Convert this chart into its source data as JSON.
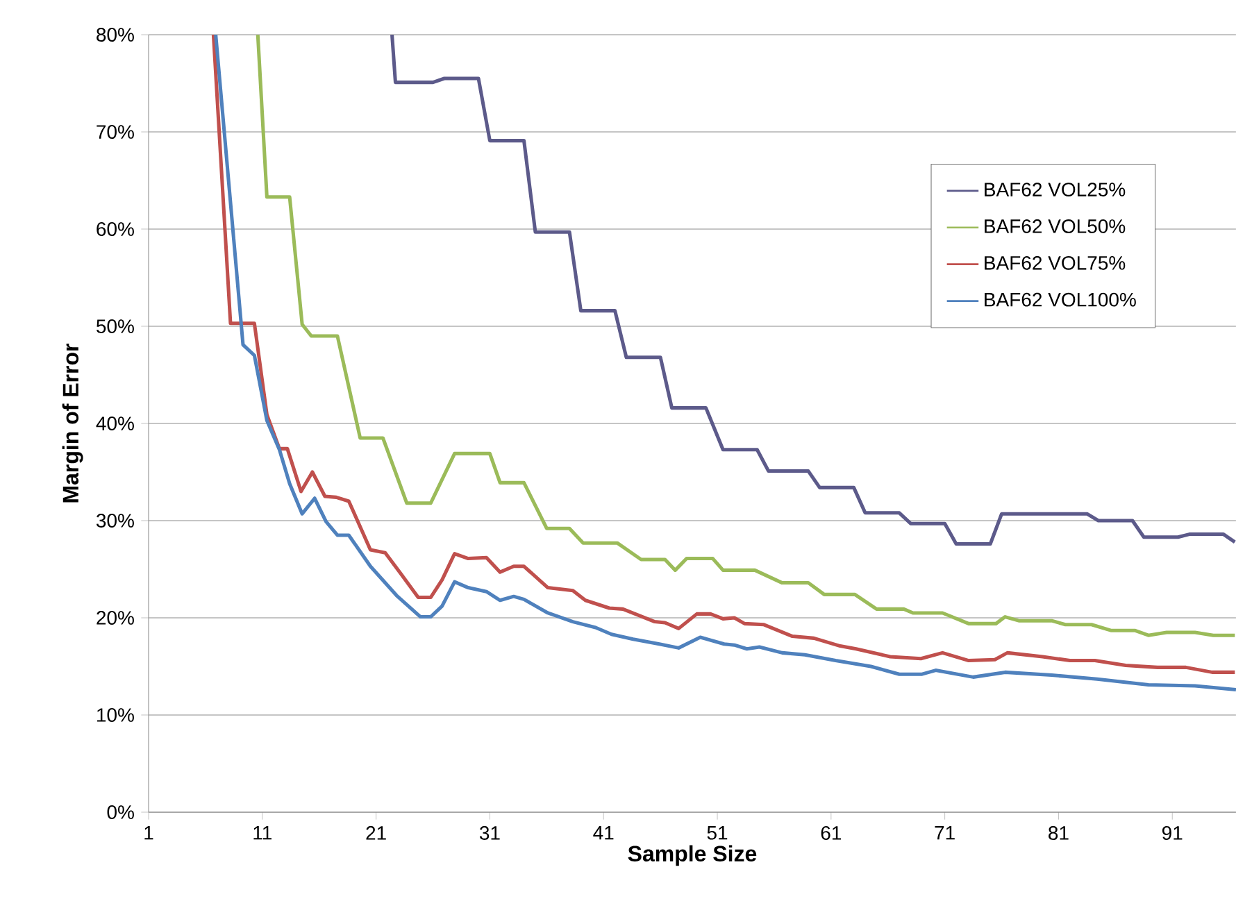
{
  "chart_data": {
    "type": "line",
    "xlabel": "Sample Size",
    "ylabel": "Margin of Error",
    "xlim": [
      1,
      96.6
    ],
    "xticks": [
      1,
      11,
      21,
      31,
      41,
      51,
      61,
      71,
      81,
      91
    ],
    "ylim": [
      0,
      80
    ],
    "yticks": [
      {
        "value": 0,
        "label": "0%"
      },
      {
        "value": 10,
        "label": "10%"
      },
      {
        "value": 20,
        "label": "20%"
      },
      {
        "value": 30,
        "label": "30%"
      },
      {
        "value": 40,
        "label": "40%"
      },
      {
        "value": 50,
        "label": "50%"
      },
      {
        "value": 60,
        "label": "60%"
      },
      {
        "value": 70,
        "label": "70%"
      },
      {
        "value": 80,
        "label": "80%"
      }
    ],
    "grid": "y",
    "legend": "top right",
    "series": [
      {
        "name": "BAF62 VOL25%",
        "color": "#5c5a8a",
        "x": [
          22.4,
          22.7,
          26,
          27,
          30,
          31,
          34,
          35,
          38,
          39,
          42,
          43,
          46,
          47,
          50,
          51.5,
          54.5,
          55.5,
          59,
          60,
          63,
          64,
          67,
          68,
          71,
          72,
          75,
          76,
          83.5,
          84.5,
          87.5,
          88.5,
          91.5,
          92.5,
          95.5,
          96.5
        ],
        "values": [
          80,
          75.1,
          75.1,
          75.5,
          75.5,
          69.1,
          69.1,
          59.7,
          59.7,
          51.6,
          51.6,
          46.8,
          46.8,
          41.6,
          41.6,
          37.3,
          37.3,
          35.1,
          35.1,
          33.4,
          33.4,
          30.8,
          30.8,
          29.7,
          29.7,
          27.6,
          27.6,
          30.7,
          30.7,
          30.0,
          30.0,
          28.3,
          28.3,
          28.6,
          28.6,
          27.8
        ]
      },
      {
        "name": "BAF62 VOL50%",
        "color": "#9bbb59",
        "x": [
          10.6,
          11.4,
          13.4,
          14.5,
          15.3,
          17.6,
          19.6,
          21.6,
          23.7,
          25.8,
          27.9,
          31,
          31.9,
          34,
          36,
          38,
          39.2,
          42.2,
          44.3,
          46.4,
          47.3,
          48.3,
          50.6,
          51.5,
          54.3,
          56.7,
          59,
          60.4,
          63.1,
          65,
          67.4,
          68.2,
          70.8,
          73.1,
          75.5,
          76.3,
          77.5,
          80.4,
          81.6,
          83.9,
          85.6,
          87.7,
          88.9,
          90.5,
          93,
          94.6,
          96.5
        ],
        "values": [
          80,
          63.3,
          63.3,
          50.2,
          49.0,
          49.0,
          38.5,
          38.5,
          31.8,
          31.8,
          36.9,
          36.9,
          33.9,
          33.9,
          29.2,
          29.2,
          27.7,
          27.7,
          26.0,
          26.0,
          24.9,
          26.1,
          26.1,
          24.9,
          24.9,
          23.6,
          23.6,
          22.4,
          22.4,
          20.9,
          20.9,
          20.5,
          20.5,
          19.4,
          19.4,
          20.1,
          19.7,
          19.7,
          19.3,
          19.3,
          18.7,
          18.7,
          18.2,
          18.5,
          18.5,
          18.2,
          18.2
        ]
      },
      {
        "name": "BAF62 VOL75%",
        "color": "#c0504d",
        "x": [
          6.7,
          8.2,
          10.3,
          11.4,
          12.5,
          13.2,
          14.4,
          15.4,
          16.5,
          17.5,
          18.6,
          20.5,
          21.8,
          23.2,
          24.7,
          25.8,
          26.8,
          27.9,
          29.1,
          30.7,
          31.9,
          33.1,
          34,
          36.1,
          38.3,
          39.4,
          41.5,
          42.7,
          45.5,
          46.4,
          47.6,
          49.2,
          50.4,
          51.5,
          52.5,
          53.4,
          55.1,
          57.6,
          59.5,
          61.8,
          63.2,
          66.2,
          68.9,
          70.8,
          73.1,
          75.4,
          76.5,
          79.6,
          82,
          84.2,
          86.9,
          89.7,
          92.2,
          94.5,
          96.5
        ],
        "values": [
          80,
          50.3,
          50.3,
          40.9,
          37.4,
          37.4,
          33.0,
          35.0,
          32.5,
          32.4,
          32.0,
          27.0,
          26.7,
          24.5,
          22.1,
          22.1,
          23.9,
          26.6,
          26.1,
          26.2,
          24.7,
          25.3,
          25.3,
          23.1,
          22.8,
          21.8,
          21.0,
          20.9,
          19.6,
          19.5,
          18.9,
          20.4,
          20.4,
          19.9,
          20.0,
          19.4,
          19.3,
          18.1,
          17.9,
          17.1,
          16.8,
          16.0,
          15.8,
          16.4,
          15.6,
          15.7,
          16.4,
          16.0,
          15.6,
          15.6,
          15.1,
          14.9,
          14.9,
          14.4,
          14.4
        ]
      },
      {
        "name": "BAF62 VOL100%",
        "color": "#4f81bd",
        "x": [
          6.9,
          9.3,
          10.3,
          11.4,
          12.5,
          13.4,
          14.5,
          15.6,
          16.6,
          17.6,
          18.6,
          20.5,
          22.8,
          24.9,
          25.8,
          26.8,
          27.9,
          29.1,
          30.7,
          31.9,
          33.1,
          34,
          36.1,
          38.3,
          40.3,
          41.7,
          43.6,
          45.9,
          47.6,
          49.5,
          51.6,
          52.5,
          53.6,
          54.7,
          56.7,
          58.7,
          61.4,
          64.5,
          67,
          69,
          70.2,
          73.5,
          76.3,
          80.4,
          84.4,
          88.9,
          93,
          96.6
        ],
        "values": [
          80,
          48.1,
          47.0,
          40.3,
          37.3,
          33.8,
          30.7,
          32.3,
          29.9,
          28.5,
          28.5,
          25.3,
          22.3,
          20.1,
          20.1,
          21.2,
          23.7,
          23.1,
          22.7,
          21.8,
          22.2,
          21.9,
          20.5,
          19.6,
          19.0,
          18.3,
          17.8,
          17.3,
          16.9,
          18.0,
          17.3,
          17.2,
          16.8,
          17.0,
          16.4,
          16.2,
          15.6,
          15.0,
          14.2,
          14.2,
          14.6,
          13.9,
          14.4,
          14.1,
          13.7,
          13.1,
          13.0,
          12.6
        ]
      }
    ]
  }
}
